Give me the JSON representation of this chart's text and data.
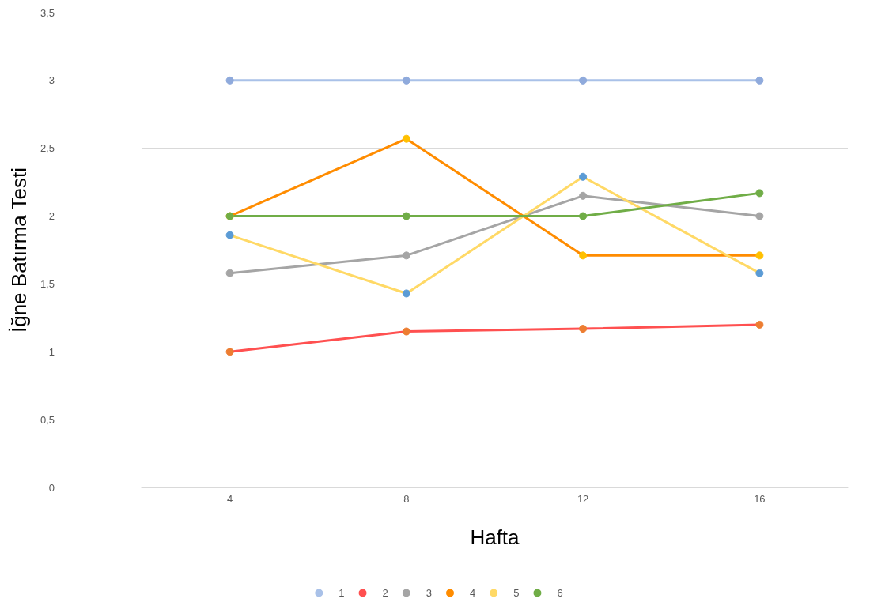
{
  "chart_data": {
    "type": "line",
    "xlabel": "Hafta",
    "ylabel": "İğne Batırma Testi",
    "categories": [
      "4",
      "8",
      "12",
      "16"
    ],
    "series": [
      {
        "name": "1",
        "color": "#a9c1e8",
        "colors": [
          "#8faadc",
          "#8faadc",
          "#8faadc",
          "#8faadc"
        ],
        "values": [
          3,
          3,
          3,
          3
        ]
      },
      {
        "name": "2",
        "color": "#ff5050",
        "colors": [
          "#ed7d31",
          "#ed7d31",
          "#ed7d31",
          "#ed7d31"
        ],
        "values": [
          1,
          1.15,
          1.17,
          1.2
        ]
      },
      {
        "name": "3",
        "color": "#a5a5a5",
        "colors": [
          "#a5a5a5",
          "#a5a5a5",
          "#a5a5a5",
          "#a5a5a5"
        ],
        "values": [
          1.58,
          1.71,
          2.15,
          2
        ]
      },
      {
        "name": "4",
        "color": "#ff8c00",
        "colors": [
          "#ffc000",
          "#ffc000",
          "#ffc000",
          "#ffc000"
        ],
        "values": [
          2,
          2.57,
          1.71,
          1.71
        ]
      },
      {
        "name": "5",
        "color": "#ffd966",
        "colors": [
          "#5b9bd5",
          "#5b9bd5",
          "#5b9bd5",
          "#5b9bd5"
        ],
        "values": [
          1.86,
          1.43,
          2.29,
          1.58
        ]
      },
      {
        "name": "6",
        "color": "#70ad47",
        "colors": [
          "#70ad47",
          "#70ad47",
          "#70ad47",
          "#70ad47"
        ],
        "values": [
          2,
          2,
          2,
          2.17
        ]
      }
    ],
    "ylim": [
      0,
      3.5
    ],
    "yticks": [
      0,
      {
        "value": 0.5,
        "label": "0,5"
      },
      1,
      {
        "value": 1.5,
        "label": "1,5"
      },
      2,
      {
        "value": 2.5,
        "label": "2,5"
      },
      3,
      {
        "value": 3.5,
        "label": "3,5"
      }
    ],
    "grid": "y",
    "legend": "bottom",
    "marker": "circle",
    "line_style": "solid"
  }
}
